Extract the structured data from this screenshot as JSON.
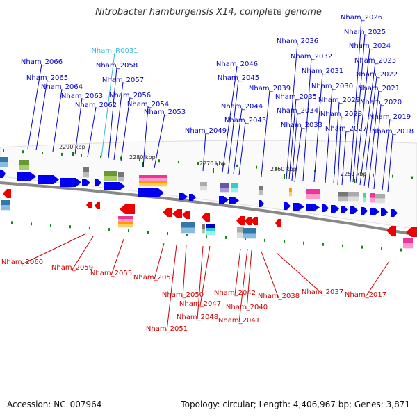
{
  "title": "Nitrobacter hamburgensis X14, complete genome",
  "footer": {
    "accession": "Accession: NC_007964",
    "summary": "Topology: circular; Length: 4,406,967 bp; Genes: 3,871"
  },
  "colors": {
    "forward_label": "#0000cc",
    "reverse_label": "#cc0000",
    "rna_label": "#33bbdd",
    "forward_arrow": "#0000ee",
    "reverse_arrow": "#ee0000",
    "backbone": "#888888"
  },
  "scale_ticks": [
    "2290 kbp",
    "2280 kbp",
    "2270 kbp",
    "2260 kbp",
    "2250 kbp"
  ],
  "forward_genes": [
    "Nham_2066",
    "Nham_2065",
    "Nham_2064",
    "Nham_2063",
    "Nham_2062",
    "Nham_R0031",
    "Nham_2058",
    "Nham_2057",
    "Nham_2056",
    "Nham_2054",
    "Nham_2053",
    "Nham_2049",
    "Nham_2046",
    "Nham_2045",
    "Nham_2044",
    "Nham_2043",
    "Nham_2039",
    "Nham_2036",
    "Nham_2035",
    "Nham_2034",
    "Nham_2033",
    "Nham_2032",
    "Nham_2031",
    "Nham_2030",
    "Nham_2029",
    "Nham_2028",
    "Nham_2027",
    "Nham_2026",
    "Nham_2025",
    "Nham_2024",
    "Nham_2023",
    "Nham_2022",
    "Nham_2021",
    "Nham_2020",
    "Nham_2019",
    "Nham_2018"
  ],
  "reverse_genes": [
    "Nham_2060",
    "Nham_2059",
    "Nham_2055",
    "Nham_2052",
    "Nham_2051",
    "Nham_2050",
    "Nham_2048",
    "Nham_2047",
    "Nham_2042",
    "Nham_2041",
    "Nham_2040",
    "Nham_2038",
    "Nham_2037",
    "Nham_2017"
  ]
}
